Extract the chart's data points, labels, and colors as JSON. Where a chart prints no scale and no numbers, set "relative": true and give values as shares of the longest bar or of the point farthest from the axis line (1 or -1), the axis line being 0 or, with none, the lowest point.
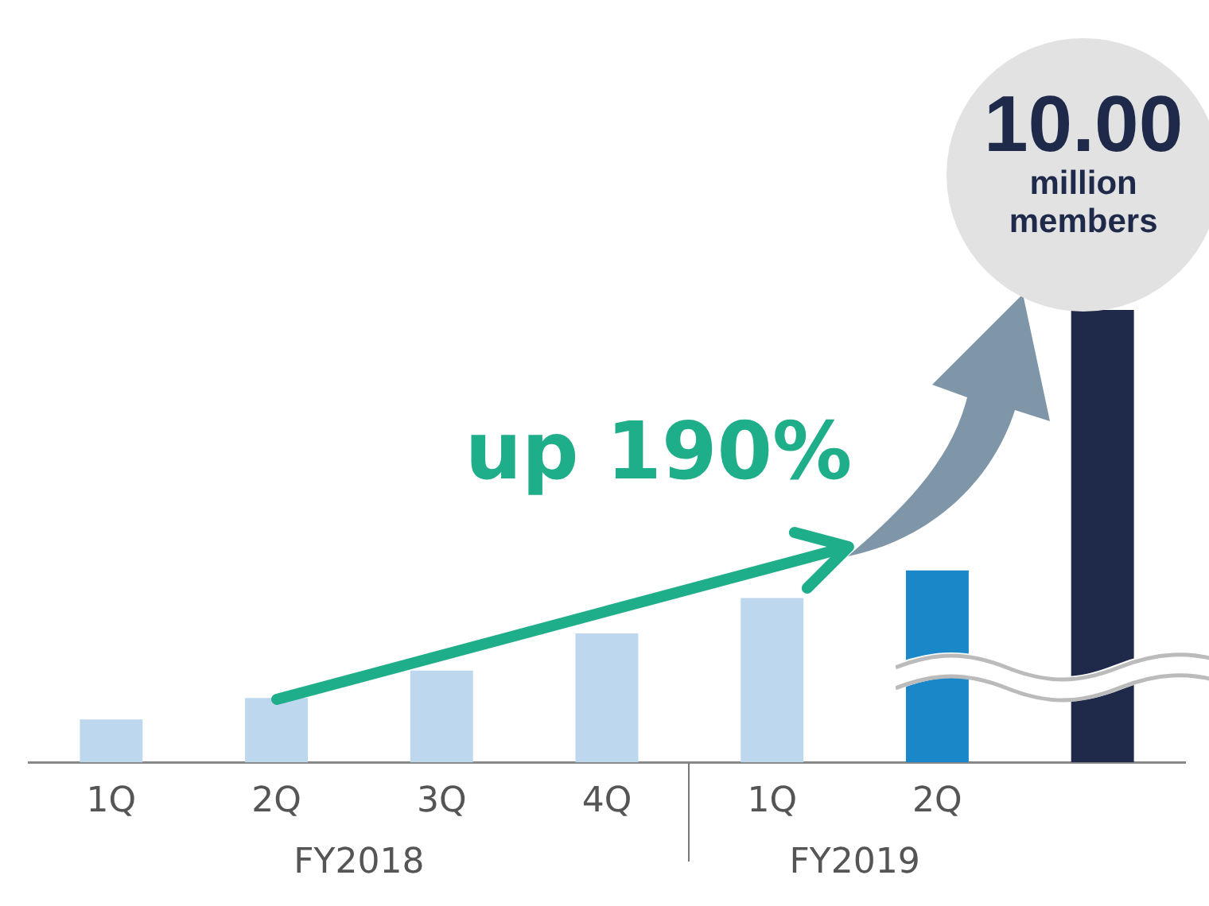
{
  "chart_data": {
    "type": "bar",
    "relative": true,
    "categories": [
      "1Q",
      "2Q",
      "3Q",
      "4Q",
      "1Q",
      "2Q",
      null
    ],
    "values": [
      0.095,
      0.142,
      0.203,
      0.285,
      0.363,
      0.424,
      1
    ],
    "colors": [
      "#bdd7ee",
      "#bdd7ee",
      "#bdd7ee",
      "#bdd7ee",
      "#bdd7ee",
      "#1a87c9",
      "#1f2a4a"
    ],
    "annotations": [
      "up 190%",
      "FY2018",
      "FY2019",
      "10.00 million members"
    ],
    "grid": false,
    "legend": false
  }
}
